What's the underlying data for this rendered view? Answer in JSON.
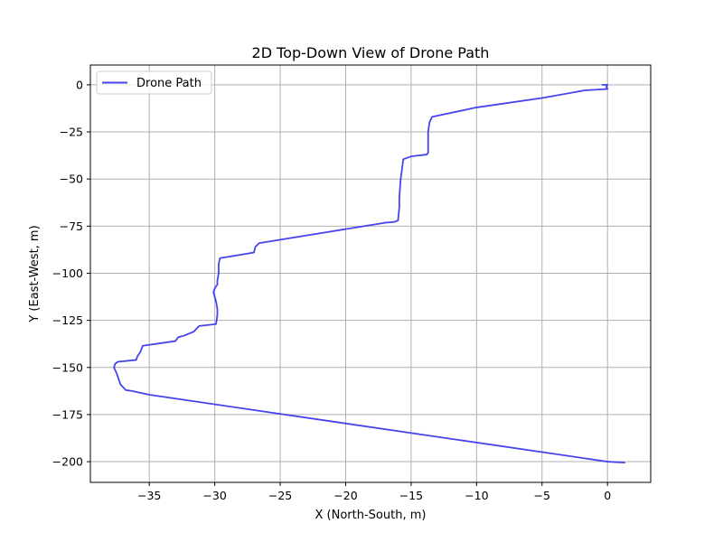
{
  "chart_data": {
    "type": "line",
    "title": "2D Top-Down View of Drone Path",
    "xlabel": "X (North-South, m)",
    "ylabel": "Y (East-West, m)",
    "xlim": [
      -39.5,
      3.3
    ],
    "ylim": [
      -211,
      10.5
    ],
    "xticks": [
      -35,
      -30,
      -25,
      -20,
      -15,
      -10,
      -5,
      0
    ],
    "yticks": [
      0,
      -25,
      -50,
      -75,
      -100,
      -125,
      -150,
      -175,
      -200
    ],
    "xtick_labels": [
      "−35",
      "−30",
      "−25",
      "−20",
      "−15",
      "−10",
      "−5",
      "0"
    ],
    "ytick_labels": [
      "0",
      "−25",
      "−50",
      "−75",
      "−100",
      "−125",
      "−150",
      "−175",
      "−200"
    ],
    "grid": true,
    "legend_position": "top-left",
    "series": [
      {
        "name": "Drone Path",
        "color": "#4444ee",
        "x": [
          -0.4,
          0.0,
          -0.1,
          0.0,
          -1.8,
          -5.0,
          -10.0,
          -13.4,
          -13.6,
          -13.7,
          -13.7,
          -13.7,
          -13.8,
          -15.0,
          -15.6,
          -15.7,
          -15.8,
          -15.9,
          -15.9,
          -16.0,
          -16.3,
          -17.0,
          -26.6,
          -26.9,
          -27.0,
          -29.6,
          -29.7,
          -29.7,
          -29.8,
          -29.8,
          -30.0,
          -30.1,
          -29.9,
          -29.8,
          -29.8,
          -29.9,
          -31.2,
          -31.6,
          -32.3,
          -32.8,
          -33.0,
          -35.5,
          -35.7,
          -35.9,
          -36.0,
          -37.4,
          -37.6,
          -37.7,
          -37.5,
          -37.3,
          -37.2,
          -36.8,
          -36.3,
          -35.0,
          0.0,
          1.3
        ],
        "y": [
          0.0,
          0.0,
          -1.0,
          -2.2,
          -3.0,
          -7.0,
          -12.0,
          -17.0,
          -20.0,
          -25.0,
          -32.0,
          -36.0,
          -37.0,
          -38.0,
          -39.5,
          -45.0,
          -50.0,
          -60.0,
          -65.0,
          -72.0,
          -72.8,
          -73.2,
          -84.0,
          -86.0,
          -89.0,
          -92.0,
          -95.0,
          -100.0,
          -104.0,
          -106.0,
          -108.0,
          -110.0,
          -115.0,
          -119.0,
          -122.0,
          -127.0,
          -128.0,
          -131.0,
          -133.0,
          -134.0,
          -136.0,
          -138.5,
          -142.0,
          -144.0,
          -146.0,
          -147.0,
          -148.0,
          -150.0,
          -153.0,
          -157.0,
          -159.0,
          -162.0,
          -162.5,
          -164.5,
          -200.0,
          -200.5
        ]
      }
    ]
  }
}
